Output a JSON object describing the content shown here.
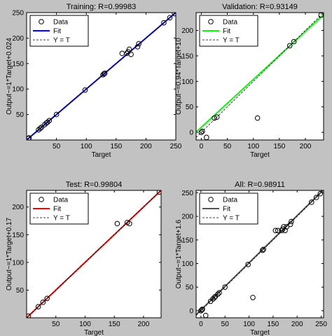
{
  "figure": {
    "background": "#c2c2c2",
    "panel_background": "#ffffff",
    "data_marker_color": "#000000",
    "ideal_line_color": "#000000"
  },
  "chart_data": [
    {
      "type": "scatter",
      "title": "Training: R=0.99983",
      "xlabel": "Target",
      "ylabel": "Output~=1*Target+0.024",
      "xlim": [
        0,
        250
      ],
      "ylim": [
        0,
        250
      ],
      "xticks": [
        50,
        100,
        150,
        200,
        250
      ],
      "yticks": [
        50,
        100,
        150,
        200,
        250
      ],
      "legend": {
        "position": "top-left",
        "entries": [
          "Data",
          "Fit",
          "Y = T"
        ]
      },
      "fit": {
        "slope": 1,
        "intercept": 0.024,
        "color": "#0000ff"
      },
      "x": [
        3,
        4,
        20,
        23,
        25,
        30,
        33,
        35,
        38,
        50,
        98,
        128,
        130,
        131,
        160,
        168,
        170,
        172,
        175,
        186,
        188,
        230,
        240,
        248
      ],
      "y": [
        3,
        4,
        20,
        23,
        25,
        30,
        33,
        35,
        38,
        50,
        98,
        128,
        130,
        131,
        170,
        170,
        173,
        178,
        168,
        183,
        189,
        230,
        240,
        248
      ]
    },
    {
      "type": "scatter",
      "title": "Validation: R=0.93149",
      "xlabel": "Target",
      "ylabel": "Output~=0.94*Target+10",
      "xlim": [
        -10,
        235
      ],
      "ylim": [
        -15,
        235
      ],
      "xticks": [
        0,
        50,
        100,
        150,
        200
      ],
      "yticks": [
        0,
        50,
        100,
        150,
        200
      ],
      "legend": {
        "position": "top-left",
        "entries": [
          "Data",
          "Fit",
          "Y = T"
        ]
      },
      "fit": {
        "slope": 0.94,
        "intercept": 10,
        "color": "#00ff00"
      },
      "x": [
        0,
        2,
        10,
        25,
        30,
        108,
        170,
        178,
        230
      ],
      "y": [
        0,
        2,
        -10,
        28,
        30,
        28,
        170,
        178,
        230
      ]
    },
    {
      "type": "scatter",
      "title": "Test: R=0.99804",
      "xlabel": "Target",
      "ylabel": "Output~=1*Target+0.17",
      "xlim": [
        0,
        230
      ],
      "ylim": [
        0,
        230
      ],
      "xticks": [
        50,
        100,
        150,
        200
      ],
      "yticks": [
        50,
        100,
        150,
        200
      ],
      "legend": {
        "position": "top-left",
        "entries": [
          "Data",
          "Fit",
          "Y = T"
        ]
      },
      "fit": {
        "slope": 1,
        "intercept": 0.17,
        "color": "#ff0000"
      },
      "x": [
        3,
        20,
        28,
        35,
        155,
        172,
        176,
        227
      ],
      "y": [
        3,
        20,
        28,
        35,
        170,
        172,
        170,
        227
      ]
    },
    {
      "type": "scatter",
      "title": "All: R=0.98911",
      "xlabel": "Target",
      "ylabel": "Output~=1*Target+1.6",
      "xlim": [
        -10,
        255
      ],
      "ylim": [
        -15,
        255
      ],
      "xticks": [
        0,
        50,
        100,
        150,
        200,
        250
      ],
      "yticks": [
        0,
        50,
        100,
        150,
        200,
        250
      ],
      "legend": {
        "position": "top-left",
        "entries": [
          "Data",
          "Fit",
          "Y = T"
        ]
      },
      "fit": {
        "slope": 1,
        "intercept": 1.6,
        "color": "#555555"
      },
      "x": [
        0,
        2,
        3,
        10,
        20,
        25,
        28,
        30,
        35,
        38,
        50,
        98,
        108,
        128,
        130,
        155,
        160,
        168,
        170,
        172,
        175,
        178,
        186,
        188,
        230,
        240,
        248
      ],
      "y": [
        0,
        2,
        3,
        -10,
        20,
        25,
        28,
        30,
        35,
        38,
        50,
        98,
        28,
        128,
        130,
        170,
        170,
        170,
        173,
        178,
        170,
        178,
        183,
        189,
        230,
        240,
        248
      ]
    }
  ]
}
